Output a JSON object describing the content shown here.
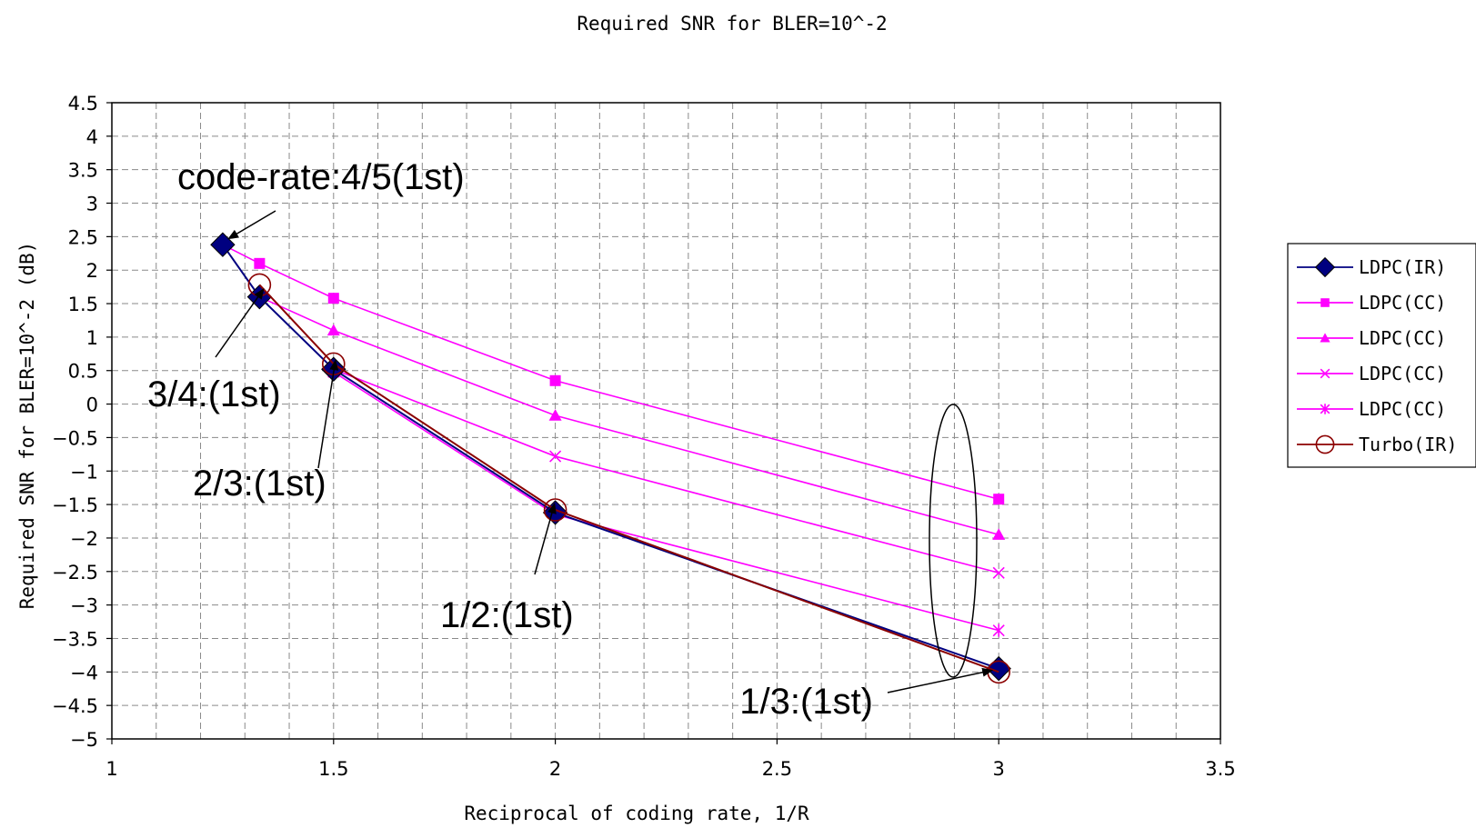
{
  "chart_data": {
    "type": "line",
    "title": "Required SNR for BLER=10^-2",
    "xlabel": "Reciprocal of coding rate, 1/R",
    "ylabel": "Required SNR for BLER=10^-2 (dB)",
    "xlim": [
      1,
      3.5
    ],
    "ylim": [
      -5,
      4.5
    ],
    "xticks": [
      "1",
      "1.5",
      "2",
      "2.5",
      "3",
      "3.5"
    ],
    "yticks": [
      "4.5",
      "4",
      "3.5",
      "3",
      "2.5",
      "2",
      "1.5",
      "1",
      "0.5",
      "0",
      "−0.5",
      "−1",
      "−1.5",
      "−2",
      "−2.5",
      "−3",
      "−3.5",
      "−4",
      "−4.5",
      "−5"
    ],
    "grid": true,
    "legend_position": "right",
    "series": [
      {
        "name": "LDPC(IR)",
        "color": "#000080",
        "marker": "diamond",
        "x": [
          1.25,
          1.333,
          1.5,
          2,
          3
        ],
        "y": [
          2.38,
          1.6,
          0.52,
          -1.62,
          -3.95
        ]
      },
      {
        "name": "LDPC(CC)",
        "color": "#ff00ff",
        "marker": "square",
        "x": [
          1.25,
          1.333,
          1.5,
          2,
          3
        ],
        "y": [
          2.38,
          2.1,
          1.58,
          0.35,
          -1.42
        ]
      },
      {
        "name": "LDPC(CC)",
        "color": "#ff00ff",
        "marker": "triangle",
        "x": [
          1.333,
          1.5,
          2,
          3
        ],
        "y": [
          1.6,
          1.1,
          -0.17,
          -1.95
        ]
      },
      {
        "name": "LDPC(CC)",
        "color": "#ff00ff",
        "marker": "x",
        "x": [
          1.5,
          2,
          3
        ],
        "y": [
          0.52,
          -0.78,
          -2.52
        ]
      },
      {
        "name": "LDPC(CC)",
        "color": "#ff00ff",
        "marker": "star",
        "x": [
          1.5,
          2,
          3
        ],
        "y": [
          0.48,
          -1.65,
          -3.38
        ]
      },
      {
        "name": "Turbo(IR)",
        "color": "#8b0000",
        "marker": "circle",
        "x": [
          1.333,
          1.5,
          2,
          3
        ],
        "y": [
          1.78,
          0.6,
          -1.58,
          -4.0
        ]
      }
    ],
    "annotations": [
      {
        "text": "code-rate:4/5(1st)",
        "x": 1.25,
        "y": 2.38
      },
      {
        "text": "3/4:(1st)",
        "x": 1.333,
        "y": 1.6
      },
      {
        "text": "2/3:(1st)",
        "x": 1.5,
        "y": 0.52
      },
      {
        "text": "1/2:(1st)",
        "x": 2,
        "y": -1.62
      },
      {
        "text": "1/3:(1st)",
        "x": 3,
        "y": -3.95
      }
    ]
  }
}
